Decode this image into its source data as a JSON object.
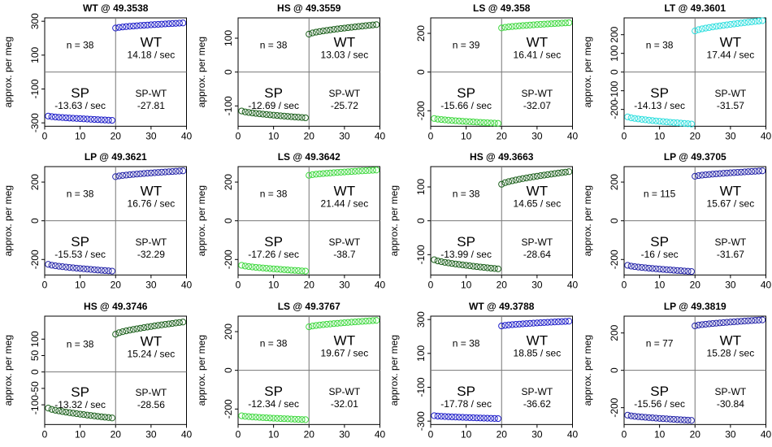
{
  "chart_data": [
    {
      "type": "scatter",
      "title": "WT @ 49.3538",
      "ylabel": "approx. per meg",
      "ylim": [
        -320,
        320
      ],
      "yticks": [
        -300,
        -100,
        100,
        300
      ],
      "xlim": [
        0,
        40
      ],
      "xticks": [
        0,
        10,
        20,
        30,
        40
      ],
      "color": "#1a1ac8",
      "n_label": "n = 38",
      "wt_label": "WT",
      "wt_rate": "14.18 / sec",
      "sp_label": "SP",
      "sp_rate": "-13.63 / sec",
      "spwt_label": "SP-WT",
      "spwt_value": "-27.81",
      "sp_y_start": -260,
      "sp_y_end": -285,
      "wt_y_start": 260,
      "wt_y_end": 290
    },
    {
      "type": "scatter",
      "title": "HS @ 49.3559",
      "ylabel": "approx. per meg",
      "ylim": [
        -160,
        160
      ],
      "yticks": [
        -100,
        0,
        100
      ],
      "xlim": [
        0,
        40
      ],
      "xticks": [
        0,
        10,
        20,
        30,
        40
      ],
      "color": "#1a5e1a",
      "n_label": "n = 38",
      "wt_label": "WT",
      "wt_rate": "13.03 / sec",
      "sp_label": "SP",
      "sp_rate": "-12.69 / sec",
      "spwt_label": "SP-WT",
      "spwt_value": "-25.72",
      "sp_y_start": -115,
      "sp_y_end": -135,
      "wt_y_start": 112,
      "wt_y_end": 140
    },
    {
      "type": "scatter",
      "title": "LS @ 49.358",
      "ylabel": "",
      "ylim": [
        -280,
        280
      ],
      "yticks": [
        -200,
        0,
        200
      ],
      "xlim": [
        0,
        40
      ],
      "xticks": [
        0,
        10,
        20,
        30,
        40
      ],
      "color": "#3cd83c",
      "n_label": "n = 39",
      "wt_label": "WT",
      "wt_rate": "16.41 / sec",
      "sp_label": "SP",
      "sp_rate": "-15.66 / sec",
      "spwt_label": "SP-WT",
      "spwt_value": "-32.07",
      "sp_y_start": -240,
      "sp_y_end": -265,
      "wt_y_start": 228,
      "wt_y_end": 255
    },
    {
      "type": "scatter",
      "title": "LT @ 49.3601",
      "ylabel": "approx. per meg",
      "ylim": [
        -290,
        290
      ],
      "yticks": [
        -200,
        -100,
        0,
        100,
        200
      ],
      "xlim": [
        0,
        40
      ],
      "xticks": [
        0,
        10,
        20,
        30,
        40
      ],
      "color": "#2adede",
      "n_label": "n = 38",
      "wt_label": "WT",
      "wt_rate": "17.44 / sec",
      "sp_label": "SP",
      "sp_rate": "-14.13 / sec",
      "spwt_label": "SP-WT",
      "spwt_value": "-31.57",
      "sp_y_start": -240,
      "sp_y_end": -278,
      "wt_y_start": 220,
      "wt_y_end": 275
    },
    {
      "type": "scatter",
      "title": "LP @ 49.3621",
      "ylabel": "approx. per meg",
      "ylim": [
        -280,
        280
      ],
      "yticks": [
        -200,
        0,
        200
      ],
      "xlim": [
        0,
        40
      ],
      "xticks": [
        0,
        10,
        20,
        30,
        40
      ],
      "color": "#2323a8",
      "n_label": "n = 38",
      "wt_label": "WT",
      "wt_rate": "16.76 / sec",
      "sp_label": "SP",
      "sp_rate": "-15.53 / sec",
      "spwt_label": "SP-WT",
      "spwt_value": "-32.29",
      "sp_y_start": -225,
      "sp_y_end": -260,
      "wt_y_start": 228,
      "wt_y_end": 258
    },
    {
      "type": "scatter",
      "title": "LS @ 49.3642",
      "ylabel": "approx. per meg",
      "ylim": [
        -280,
        280
      ],
      "yticks": [
        -200,
        0,
        200
      ],
      "xlim": [
        0,
        40
      ],
      "xticks": [
        0,
        10,
        20,
        30,
        40
      ],
      "color": "#3cd83c",
      "n_label": "n = 38",
      "wt_label": "WT",
      "wt_rate": "21.44 / sec",
      "sp_label": "SP",
      "sp_rate": "-17.26 / sec",
      "spwt_label": "SP-WT",
      "spwt_value": "-38.7",
      "sp_y_start": -230,
      "sp_y_end": -260,
      "wt_y_start": 235,
      "wt_y_end": 262
    },
    {
      "type": "scatter",
      "title": "HS @ 49.3663",
      "ylabel": "approx. per meg",
      "ylim": [
        -160,
        160
      ],
      "yticks": [
        -100,
        0,
        100
      ],
      "xlim": [
        0,
        40
      ],
      "xticks": [
        0,
        10,
        20,
        30,
        40
      ],
      "color": "#1a5e1a",
      "n_label": "n = 38",
      "wt_label": "WT",
      "wt_rate": "14.65 / sec",
      "sp_label": "SP",
      "sp_rate": "-13.99 / sec",
      "spwt_label": "SP-WT",
      "spwt_value": "-28.64",
      "sp_y_start": -115,
      "sp_y_end": -142,
      "wt_y_start": 108,
      "wt_y_end": 145
    },
    {
      "type": "scatter",
      "title": "LP @ 49.3705",
      "ylabel": "approx. per meg",
      "ylim": [
        -280,
        280
      ],
      "yticks": [
        -200,
        0,
        200
      ],
      "xlim": [
        0,
        40
      ],
      "xticks": [
        0,
        10,
        20,
        30,
        40
      ],
      "color": "#2323a8",
      "n_label": "n = 115",
      "wt_label": "WT",
      "wt_rate": "15.67 / sec",
      "sp_label": "SP",
      "sp_rate": "-16 / sec",
      "spwt_label": "SP-WT",
      "spwt_value": "-31.67",
      "sp_y_start": -230,
      "sp_y_end": -262,
      "wt_y_start": 230,
      "wt_y_end": 258
    },
    {
      "type": "scatter",
      "title": "HS @ 49.3746",
      "ylabel": "approx. per meg",
      "ylim": [
        -160,
        170
      ],
      "yticks": [
        -100,
        -50,
        0,
        50,
        100
      ],
      "xlim": [
        0,
        40
      ],
      "xticks": [
        0,
        10,
        20,
        30,
        40
      ],
      "color": "#1a5e1a",
      "n_label": "n = 38",
      "wt_label": "WT",
      "wt_rate": "15.24 / sec",
      "sp_label": "SP",
      "sp_rate": "-13.32 / sec",
      "spwt_label": "SP-WT",
      "spwt_value": "-28.56",
      "sp_y_start": -110,
      "sp_y_end": -140,
      "wt_y_start": 115,
      "wt_y_end": 152
    },
    {
      "type": "scatter",
      "title": "LS @ 49.3767",
      "ylabel": "approx. per meg",
      "ylim": [
        -280,
        280
      ],
      "yticks": [
        -200,
        0,
        200
      ],
      "xlim": [
        0,
        40
      ],
      "xticks": [
        0,
        10,
        20,
        30,
        40
      ],
      "color": "#3cd83c",
      "n_label": "n = 38",
      "wt_label": "WT",
      "wt_rate": "19.67 / sec",
      "sp_label": "SP",
      "sp_rate": "-12.34 / sec",
      "spwt_label": "SP-WT",
      "spwt_value": "-32.01",
      "sp_y_start": -235,
      "sp_y_end": -255,
      "wt_y_start": 225,
      "wt_y_end": 258
    },
    {
      "type": "scatter",
      "title": "WT @ 49.3788",
      "ylabel": "approx. per meg",
      "ylim": [
        -320,
        320
      ],
      "yticks": [
        -300,
        -100,
        100,
        300
      ],
      "xlim": [
        0,
        40
      ],
      "xticks": [
        0,
        10,
        20,
        30,
        40
      ],
      "color": "#1a1ac8",
      "n_label": "n = 38",
      "wt_label": "WT",
      "wt_rate": "18.85 / sec",
      "sp_label": "SP",
      "sp_rate": "-17.78 / sec",
      "spwt_label": "SP-WT",
      "spwt_value": "-36.62",
      "sp_y_start": -268,
      "sp_y_end": -285,
      "wt_y_start": 262,
      "wt_y_end": 290
    },
    {
      "type": "scatter",
      "title": "LP @ 49.3819",
      "ylabel": "approx. per meg",
      "ylim": [
        -290,
        290
      ],
      "yticks": [
        -200,
        0,
        200
      ],
      "xlim": [
        0,
        40
      ],
      "xticks": [
        0,
        10,
        20,
        30,
        40
      ],
      "color": "#2323a8",
      "n_label": "n = 77",
      "wt_label": "WT",
      "wt_rate": "15.28 / sec",
      "sp_label": "SP",
      "sp_rate": "-15.56 / sec",
      "spwt_label": "SP-WT",
      "spwt_value": "-30.84",
      "sp_y_start": -240,
      "sp_y_end": -268,
      "wt_y_start": 238,
      "wt_y_end": 270
    }
  ]
}
